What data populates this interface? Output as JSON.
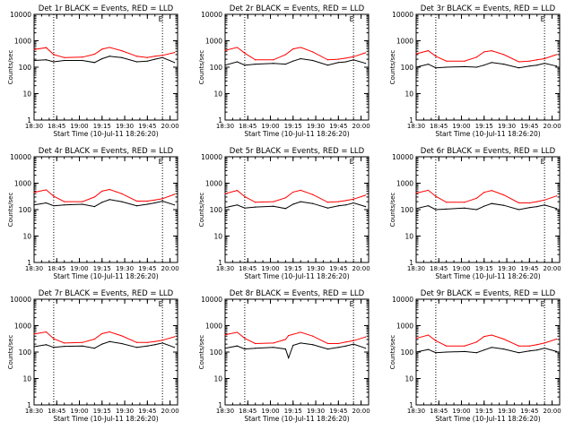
{
  "figure": {
    "colors": {
      "events": "#000000",
      "lld": "#ff0000",
      "axis": "#000000",
      "marker": "#000000"
    }
  },
  "chart_data": [
    {
      "type": "line",
      "title": "Det 1r BLACK = Events, RED = LLD",
      "xlabel": "Start Time (10-Jul-11 18:26:20)",
      "ylabel": "Counts/sec",
      "ylim": [
        1,
        10000
      ],
      "yscale": "log",
      "x_range": [
        "18:30",
        "20:05"
      ],
      "x_ticks": [
        "18:30",
        "18:45",
        "19:00",
        "19:15",
        "19:30",
        "19:45",
        "20:00"
      ],
      "y_ticks": [
        "1",
        "10",
        "100",
        "1000",
        "10000"
      ],
      "top_marker": "E",
      "vertical_markers": [
        "18:43",
        "19:55"
      ],
      "series": [
        {
          "name": "Events",
          "x": [
            "18:30",
            "18:38",
            "18:43",
            "18:50",
            "19:02",
            "19:10",
            "19:15",
            "19:20",
            "19:28",
            "19:38",
            "19:45",
            "19:50",
            "19:55",
            "20:03"
          ],
          "values": [
            180,
            190,
            160,
            180,
            180,
            150,
            210,
            260,
            230,
            160,
            170,
            200,
            230,
            150
          ]
        },
        {
          "name": "LLD",
          "x": [
            "18:30",
            "18:38",
            "18:43",
            "18:50",
            "19:02",
            "19:10",
            "19:15",
            "19:20",
            "19:28",
            "19:38",
            "19:45",
            "19:50",
            "19:55",
            "20:03"
          ],
          "values": [
            470,
            550,
            300,
            230,
            240,
            310,
            480,
            560,
            420,
            260,
            230,
            260,
            280,
            360
          ]
        }
      ]
    },
    {
      "type": "line",
      "title": "Det 2r BLACK = Events, RED = LLD",
      "xlabel": "Start Time (10-Jul-11 18:26:20)",
      "ylabel": "Counts/sec",
      "ylim": [
        1,
        10000
      ],
      "yscale": "log",
      "x_range": [
        "18:30",
        "20:05"
      ],
      "x_ticks": [
        "18:30",
        "18:45",
        "19:00",
        "19:15",
        "19:30",
        "19:45",
        "20:00"
      ],
      "y_ticks": [
        "1",
        "10",
        "100",
        "1000",
        "10000"
      ],
      "top_marker": "E",
      "vertical_markers": [
        "18:43",
        "19:55"
      ],
      "series": [
        {
          "name": "Events",
          "x": [
            "18:30",
            "18:38",
            "18:43",
            "18:50",
            "19:02",
            "19:10",
            "19:15",
            "19:20",
            "19:28",
            "19:38",
            "19:45",
            "19:50",
            "19:55",
            "20:03"
          ],
          "values": [
            120,
            160,
            120,
            130,
            140,
            130,
            170,
            210,
            180,
            120,
            150,
            160,
            190,
            140
          ]
        },
        {
          "name": "LLD",
          "x": [
            "18:30",
            "18:38",
            "18:43",
            "18:50",
            "19:02",
            "19:10",
            "19:15",
            "19:20",
            "19:28",
            "19:38",
            "19:45",
            "19:50",
            "19:55",
            "20:03"
          ],
          "values": [
            430,
            560,
            340,
            190,
            190,
            300,
            490,
            560,
            380,
            190,
            200,
            220,
            250,
            350
          ]
        }
      ]
    },
    {
      "type": "line",
      "title": "Det 3r BLACK = Events, RED = LLD",
      "xlabel": "Start Time (10-Jul-11 18:26:20)",
      "ylabel": "Counts/sec",
      "ylim": [
        1,
        10000
      ],
      "yscale": "log",
      "x_range": [
        "18:30",
        "20:05"
      ],
      "x_ticks": [
        "18:30",
        "18:45",
        "19:00",
        "19:15",
        "19:30",
        "19:45",
        "20:00"
      ],
      "y_ticks": [
        "1",
        "10",
        "100",
        "1000",
        "10000"
      ],
      "top_marker": "E",
      "vertical_markers": [
        "18:43",
        "19:55"
      ],
      "series": [
        {
          "name": "Events",
          "x": [
            "18:30",
            "18:38",
            "18:43",
            "18:50",
            "19:02",
            "19:10",
            "19:15",
            "19:20",
            "19:28",
            "19:38",
            "19:45",
            "19:50",
            "19:55",
            "20:03"
          ],
          "values": [
            100,
            130,
            95,
            100,
            105,
            100,
            120,
            150,
            130,
            95,
            110,
            120,
            140,
            110
          ]
        },
        {
          "name": "LLD",
          "x": [
            "18:30",
            "18:38",
            "18:43",
            "18:50",
            "19:02",
            "19:10",
            "19:15",
            "19:20",
            "19:28",
            "19:38",
            "19:45",
            "19:50",
            "19:55",
            "20:03"
          ],
          "values": [
            320,
            420,
            260,
            170,
            170,
            240,
            380,
            420,
            300,
            160,
            170,
            190,
            210,
            300
          ]
        }
      ]
    },
    {
      "type": "line",
      "title": "Det 4r BLACK = Events, RED = LLD",
      "xlabel": "Start Time (10-Jul-11 18:26:20)",
      "ylabel": "Counts/sec",
      "ylim": [
        1,
        10000
      ],
      "yscale": "log",
      "x_range": [
        "18:30",
        "20:05"
      ],
      "x_ticks": [
        "18:30",
        "18:45",
        "19:00",
        "19:15",
        "19:30",
        "19:45",
        "20:00"
      ],
      "y_ticks": [
        "1",
        "10",
        "100",
        "1000",
        "10000"
      ],
      "top_marker": "E",
      "vertical_markers": [
        "18:43",
        "19:55"
      ],
      "series": [
        {
          "name": "Events",
          "x": [
            "18:30",
            "18:38",
            "18:43",
            "18:50",
            "19:02",
            "19:10",
            "19:15",
            "19:20",
            "19:28",
            "19:38",
            "19:45",
            "19:50",
            "19:55",
            "20:03"
          ],
          "values": [
            150,
            180,
            140,
            150,
            160,
            130,
            190,
            240,
            200,
            140,
            160,
            180,
            210,
            150
          ]
        },
        {
          "name": "LLD",
          "x": [
            "18:30",
            "18:38",
            "18:43",
            "18:50",
            "19:02",
            "19:10",
            "19:15",
            "19:20",
            "19:28",
            "19:38",
            "19:45",
            "19:50",
            "19:55",
            "20:03"
          ],
          "values": [
            450,
            560,
            320,
            200,
            200,
            300,
            500,
            580,
            400,
            210,
            210,
            230,
            260,
            380
          ]
        }
      ]
    },
    {
      "type": "line",
      "title": "Det 5r BLACK = Events, RED = LLD",
      "xlabel": "Start Time (10-Jul-11 18:26:20)",
      "ylabel": "Counts/sec",
      "ylim": [
        1,
        10000
      ],
      "yscale": "log",
      "x_range": [
        "18:30",
        "20:05"
      ],
      "x_ticks": [
        "18:30",
        "18:45",
        "19:00",
        "19:15",
        "19:30",
        "19:45",
        "20:00"
      ],
      "y_ticks": [
        "1",
        "10",
        "100",
        "1000",
        "10000"
      ],
      "top_marker": "E",
      "vertical_markers": [
        "18:43",
        "19:55"
      ],
      "series": [
        {
          "name": "Events",
          "x": [
            "18:30",
            "18:38",
            "18:43",
            "18:50",
            "19:02",
            "19:10",
            "19:15",
            "19:20",
            "19:28",
            "19:38",
            "19:45",
            "19:50",
            "19:55",
            "20:03"
          ],
          "values": [
            120,
            150,
            115,
            125,
            135,
            110,
            160,
            200,
            170,
            115,
            140,
            150,
            180,
            130
          ]
        },
        {
          "name": "LLD",
          "x": [
            "18:30",
            "18:38",
            "18:43",
            "18:50",
            "19:02",
            "19:10",
            "19:15",
            "19:20",
            "19:28",
            "19:38",
            "19:45",
            "19:50",
            "19:55",
            "20:03"
          ],
          "values": [
            400,
            530,
            310,
            190,
            200,
            280,
            460,
            540,
            370,
            190,
            200,
            220,
            250,
            350
          ]
        }
      ]
    },
    {
      "type": "line",
      "title": "Det 6r BLACK = Events, RED = LLD",
      "xlabel": "Start Time (10-Jul-11 18:26:20)",
      "ylabel": "Counts/sec",
      "ylim": [
        1,
        10000
      ],
      "yscale": "log",
      "x_range": [
        "18:30",
        "20:05"
      ],
      "x_ticks": [
        "18:30",
        "18:45",
        "19:00",
        "19:15",
        "19:30",
        "19:45",
        "20:00"
      ],
      "y_ticks": [
        "1",
        "10",
        "100",
        "1000",
        "10000"
      ],
      "top_marker": "E",
      "vertical_markers": [
        "18:43",
        "19:55"
      ],
      "series": [
        {
          "name": "Events",
          "x": [
            "18:30",
            "18:38",
            "18:43",
            "18:50",
            "19:02",
            "19:10",
            "19:15",
            "19:20",
            "19:28",
            "19:38",
            "19:45",
            "19:50",
            "19:55",
            "20:03"
          ],
          "values": [
            110,
            140,
            100,
            105,
            115,
            100,
            135,
            170,
            145,
            100,
            120,
            130,
            150,
            110
          ]
        },
        {
          "name": "LLD",
          "x": [
            "18:30",
            "18:38",
            "18:43",
            "18:50",
            "19:02",
            "19:10",
            "19:15",
            "19:20",
            "19:28",
            "19:38",
            "19:45",
            "19:50",
            "19:55",
            "20:03"
          ],
          "values": [
            420,
            540,
            320,
            190,
            190,
            270,
            450,
            530,
            360,
            180,
            180,
            200,
            230,
            330
          ]
        }
      ]
    },
    {
      "type": "line",
      "title": "Det 7r BLACK = Events, RED = LLD",
      "xlabel": "Start Time (10-Jul-11 18:26:20)",
      "ylabel": "Counts/sec",
      "ylim": [
        1,
        10000
      ],
      "yscale": "log",
      "x_range": [
        "18:30",
        "20:05"
      ],
      "x_ticks": [
        "18:30",
        "18:45",
        "19:00",
        "19:15",
        "19:30",
        "19:45",
        "20:00"
      ],
      "y_ticks": [
        "1",
        "10",
        "100",
        "1000",
        "10000"
      ],
      "top_marker": "E",
      "vertical_markers": [
        "18:43",
        "19:55"
      ],
      "series": [
        {
          "name": "Events",
          "x": [
            "18:30",
            "18:38",
            "18:43",
            "18:50",
            "19:02",
            "19:10",
            "19:15",
            "19:20",
            "19:28",
            "19:38",
            "19:45",
            "19:50",
            "19:55",
            "20:03"
          ],
          "values": [
            160,
            190,
            150,
            165,
            170,
            140,
            200,
            250,
            210,
            150,
            170,
            190,
            220,
            150
          ]
        },
        {
          "name": "LLD",
          "x": [
            "18:30",
            "18:38",
            "18:43",
            "18:50",
            "19:02",
            "19:10",
            "19:15",
            "19:20",
            "19:28",
            "19:38",
            "19:45",
            "19:50",
            "19:55",
            "20:03"
          ],
          "values": [
            480,
            580,
            320,
            220,
            230,
            310,
            500,
            580,
            410,
            230,
            230,
            250,
            280,
            380
          ]
        }
      ]
    },
    {
      "type": "line",
      "title": "Det 8r BLACK = Events, RED = LLD",
      "xlabel": "Start Time (10-Jul-11 18:26:20)",
      "ylabel": "Counts/sec",
      "ylim": [
        1,
        10000
      ],
      "yscale": "log",
      "x_range": [
        "18:30",
        "20:05"
      ],
      "x_ticks": [
        "18:30",
        "18:45",
        "19:00",
        "19:15",
        "19:30",
        "19:45",
        "20:00"
      ],
      "y_ticks": [
        "1",
        "10",
        "100",
        "1000",
        "10000"
      ],
      "top_marker": "E",
      "vertical_markers": [
        "18:43",
        "19:55"
      ],
      "series": [
        {
          "name": "Events",
          "x": [
            "18:30",
            "18:38",
            "18:43",
            "18:50",
            "19:02",
            "19:10",
            "19:12",
            "19:15",
            "19:20",
            "19:28",
            "19:38",
            "19:45",
            "19:50",
            "19:55",
            "20:03"
          ],
          "values": [
            140,
            170,
            130,
            140,
            150,
            130,
            60,
            180,
            220,
            190,
            130,
            150,
            170,
            200,
            140
          ]
        },
        {
          "name": "LLD",
          "x": [
            "18:30",
            "18:38",
            "18:43",
            "18:50",
            "19:02",
            "19:10",
            "19:12",
            "19:15",
            "19:20",
            "19:28",
            "19:38",
            "19:45",
            "19:50",
            "19:55",
            "20:03"
          ],
          "values": [
            450,
            560,
            330,
            210,
            220,
            300,
            420,
            470,
            560,
            400,
            210,
            210,
            240,
            270,
            370
          ]
        }
      ]
    },
    {
      "type": "line",
      "title": "Det 9r BLACK = Events, RED = LLD",
      "xlabel": "Start Time (10-Jul-11 18:26:20)",
      "ylabel": "Counts/sec",
      "ylim": [
        1,
        10000
      ],
      "yscale": "log",
      "x_range": [
        "18:30",
        "20:05"
      ],
      "x_ticks": [
        "18:30",
        "18:45",
        "19:00",
        "19:15",
        "19:30",
        "19:45",
        "20:00"
      ],
      "y_ticks": [
        "1",
        "10",
        "100",
        "1000",
        "10000"
      ],
      "top_marker": "E",
      "vertical_markers": [
        "18:43",
        "19:55"
      ],
      "series": [
        {
          "name": "Events",
          "x": [
            "18:30",
            "18:38",
            "18:43",
            "18:50",
            "19:02",
            "19:10",
            "19:15",
            "19:20",
            "19:28",
            "19:38",
            "19:45",
            "19:50",
            "19:55",
            "20:03"
          ],
          "values": [
            100,
            125,
            95,
            100,
            105,
            95,
            120,
            150,
            130,
            95,
            110,
            120,
            140,
            105
          ]
        },
        {
          "name": "LLD",
          "x": [
            "18:30",
            "18:38",
            "18:43",
            "18:50",
            "19:02",
            "19:10",
            "19:15",
            "19:20",
            "19:28",
            "19:38",
            "19:45",
            "19:50",
            "19:55",
            "20:03"
          ],
          "values": [
            330,
            440,
            270,
            170,
            170,
            240,
            390,
            440,
            310,
            170,
            170,
            190,
            220,
            310
          ]
        }
      ]
    }
  ]
}
